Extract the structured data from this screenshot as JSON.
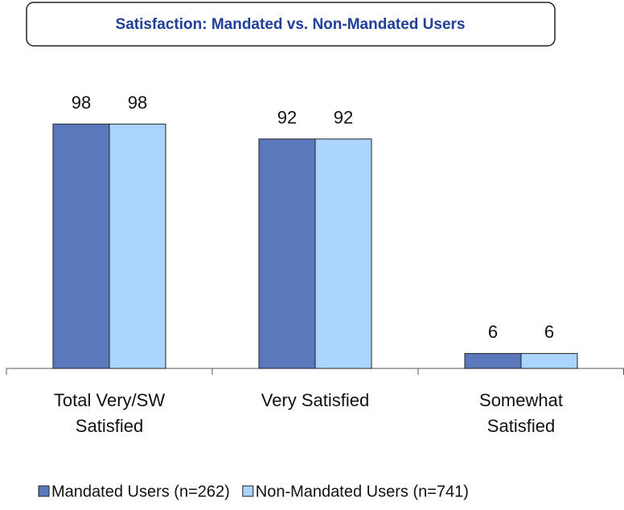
{
  "chart_data": {
    "type": "bar",
    "title": "Satisfaction: Mandated vs. Non-Mandated Users",
    "categories": [
      "Total Very/SW Satisfied",
      "Very Satisfied",
      "Somewhat Satisfied"
    ],
    "series": [
      {
        "name": "Mandated Users (n=262)",
        "color": "#5b78bd",
        "values": [
          98,
          92,
          6
        ]
      },
      {
        "name": "Non-Mandated Users (n=741)",
        "color": "#aad4fb",
        "values": [
          98,
          92,
          6
        ]
      }
    ],
    "legend": "bottom"
  }
}
